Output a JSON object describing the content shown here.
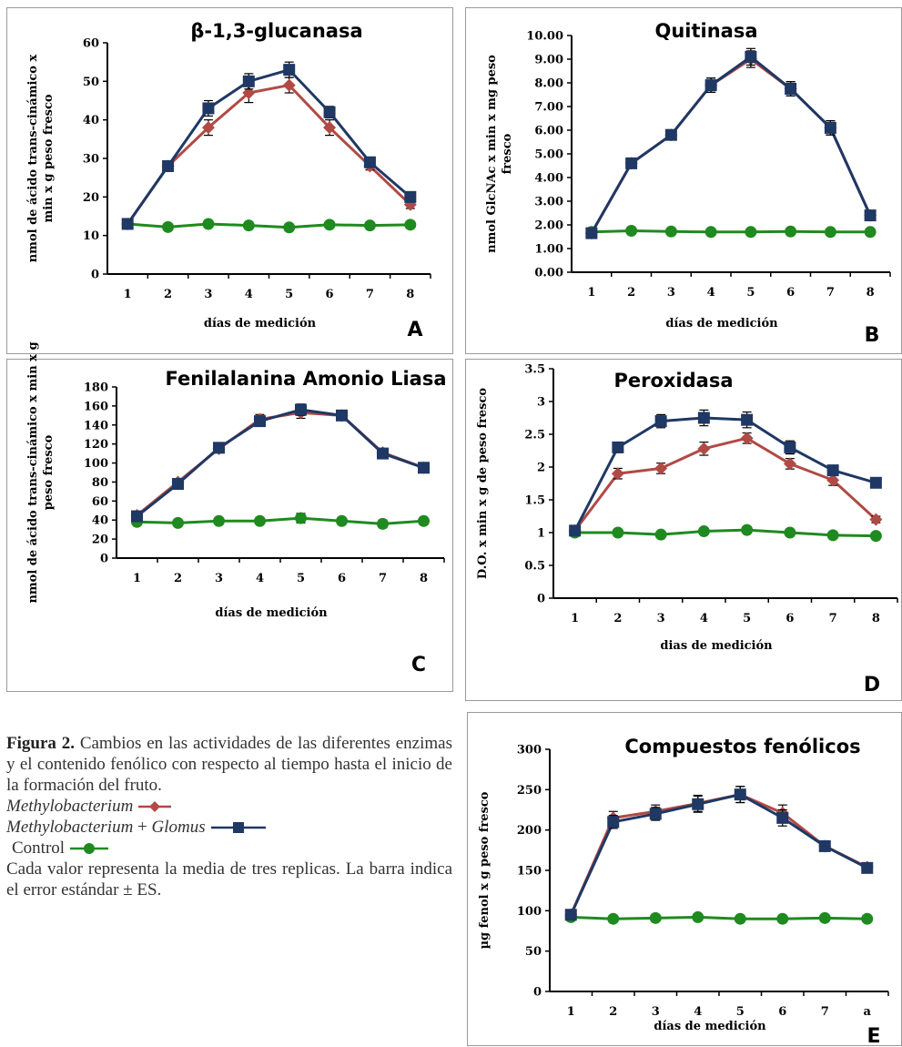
{
  "legend": {
    "methylo": "Methylobacterium",
    "methylo_glomus_1": "Methylobacterium",
    "methylo_glomus_plus": " + ",
    "methylo_glomus_2": "Glomus",
    "control": "Control"
  },
  "caption": {
    "fig_label": "Figura 2.",
    "fig_text": "  Cambios en las actividades de las diferentes enzimas y el contenido fenólico con respecto al tiempo hasta el inicio de la formación del fruto.",
    "note": "Cada valor representa la media de tres replicas. La barra indica el error estándar ± ES."
  },
  "colors": {
    "methylo": "#b04a45",
    "methylo_glomus": "#1f3864",
    "control": "#1f8a1f"
  },
  "chart_data": [
    {
      "panel": "A",
      "type": "line",
      "title": "β-1,3-glucanasa",
      "ylabel": "nmol de ácido trans-cinámico x min x g peso fresco",
      "ylabel_lines": [
        "nmol de ácido trans-cinámico x",
        "min x g peso fresco"
      ],
      "xlabel": "días de medición",
      "categories": [
        "1",
        "2",
        "3",
        "4",
        "5",
        "6",
        "7",
        "8"
      ],
      "ylim": [
        0,
        60
      ],
      "yticks": [
        "0",
        "10",
        "20",
        "30",
        "40",
        "50",
        "60"
      ],
      "series": [
        {
          "name": "Methylobacterium",
          "values": [
            13,
            28,
            38,
            47,
            49,
            38,
            28,
            18
          ],
          "err": [
            0.8,
            1.0,
            2.0,
            2.5,
            2.0,
            2.0,
            1.0,
            1.0
          ]
        },
        {
          "name": "Methylobacterium + Glomus",
          "values": [
            13,
            28,
            43,
            50,
            53,
            42,
            29,
            20
          ],
          "err": [
            0.8,
            1.0,
            2.0,
            2.0,
            2.0,
            1.5,
            1.0,
            1.0
          ]
        },
        {
          "name": "Control",
          "values": [
            13,
            12.2,
            13,
            12.6,
            12.1,
            12.8,
            12.6,
            12.8
          ],
          "err": [
            0.5,
            0.5,
            0.5,
            0.5,
            0.5,
            0.5,
            0.5,
            0.5
          ]
        }
      ]
    },
    {
      "panel": "B",
      "type": "line",
      "title": "Quitinasa",
      "ylabel": "nmol GlcNAc x min x mg peso fresco",
      "ylabel_lines": [
        "nmol GlcNAc x min x mg peso",
        "fresco"
      ],
      "xlabel": "días de medición",
      "categories": [
        "1",
        "2",
        "3",
        "4",
        "5",
        "6",
        "7",
        "8"
      ],
      "ylim": [
        0,
        10
      ],
      "yticks": [
        "0.00",
        "1.00",
        "2.00",
        "3.00",
        "4.00",
        "5.00",
        "6.00",
        "7.00",
        "8.00",
        "9.00",
        "10.00"
      ],
      "series": [
        {
          "name": "Methylobacterium",
          "values": [
            1.65,
            4.6,
            5.8,
            7.9,
            9.0,
            7.75,
            6.1,
            2.4
          ],
          "err": [
            0.1,
            0.15,
            0.15,
            0.3,
            0.35,
            0.3,
            0.3,
            0.1
          ]
        },
        {
          "name": "Methylobacterium + Glomus",
          "values": [
            1.65,
            4.6,
            5.8,
            7.9,
            9.1,
            7.75,
            6.1,
            2.4
          ],
          "err": [
            0.1,
            0.15,
            0.15,
            0.3,
            0.35,
            0.3,
            0.3,
            0.1
          ]
        },
        {
          "name": "Control",
          "values": [
            1.7,
            1.75,
            1.72,
            1.7,
            1.7,
            1.72,
            1.7,
            1.7
          ],
          "err": [
            0.05,
            0.05,
            0.05,
            0.05,
            0.05,
            0.05,
            0.05,
            0.05
          ]
        }
      ]
    },
    {
      "panel": "C",
      "type": "line",
      "title": "Fenilalanina Amonio Liasa",
      "ylabel": "nmol de ácido trans-cinámico x min x g peso fresco",
      "ylabel_lines": [
        "nmol de ácido trans-cinámico x min x g",
        "peso fresco"
      ],
      "xlabel": "días de medición",
      "categories": [
        "1",
        "2",
        "3",
        "4",
        "5",
        "6",
        "7",
        "8"
      ],
      "ylim": [
        0,
        180
      ],
      "yticks": [
        "0",
        "20",
        "40",
        "60",
        "80",
        "100",
        "120",
        "140",
        "160",
        "180"
      ],
      "series": [
        {
          "name": "Methylobacterium",
          "values": [
            45,
            80,
            115,
            146,
            153,
            150,
            111,
            95
          ],
          "err": [
            2,
            3,
            4,
            5,
            6,
            5,
            4,
            3
          ]
        },
        {
          "name": "Methylobacterium + Glomus",
          "values": [
            44,
            78,
            116,
            144,
            156,
            150,
            110,
            95
          ],
          "err": [
            2,
            3,
            4,
            5,
            6,
            5,
            4,
            3
          ]
        },
        {
          "name": "Control",
          "values": [
            38,
            37,
            39,
            39,
            42,
            39,
            36,
            39
          ],
          "err": [
            2,
            2,
            2,
            2,
            5,
            2,
            4,
            2
          ]
        }
      ]
    },
    {
      "panel": "D",
      "type": "line",
      "title": "Peroxidasa",
      "ylabel": "D.O. x min x g de peso fresco",
      "ylabel_lines": [
        "D.O. x min x g de peso fresco"
      ],
      "xlabel": "dias de medición",
      "categories": [
        "1",
        "2",
        "3",
        "4",
        "5",
        "6",
        "7",
        "8"
      ],
      "ylim": [
        0,
        3.5
      ],
      "yticks": [
        "0",
        "0.5",
        "1",
        "1.5",
        "2",
        "2.5",
        "3",
        "3.5"
      ],
      "series": [
        {
          "name": "Methylobacterium",
          "values": [
            1.03,
            1.9,
            1.98,
            2.28,
            2.44,
            2.05,
            1.8,
            1.2
          ],
          "err": [
            0.03,
            0.08,
            0.08,
            0.1,
            0.08,
            0.08,
            0.08,
            0.05
          ]
        },
        {
          "name": "Methylobacterium + Glomus",
          "values": [
            1.03,
            2.3,
            2.7,
            2.75,
            2.72,
            2.3,
            1.95,
            1.76
          ],
          "err": [
            0.03,
            0.08,
            0.1,
            0.12,
            0.12,
            0.1,
            0.05,
            0.05
          ]
        },
        {
          "name": "Control",
          "values": [
            1.0,
            1.0,
            0.97,
            1.02,
            1.04,
            1.0,
            0.96,
            0.95
          ],
          "err": [
            0.03,
            0.03,
            0.03,
            0.03,
            0.03,
            0.03,
            0.03,
            0.03
          ]
        }
      ]
    },
    {
      "panel": "E",
      "type": "line",
      "title": "Compuestos fenólicos",
      "ylabel": "µg fenol x g peso fresco",
      "ylabel_lines": [
        "µg fenol x g peso fresco"
      ],
      "xlabel": "días de medición",
      "categories": [
        "1",
        "2",
        "3",
        "4",
        "5",
        "6",
        "7",
        "a"
      ],
      "ylim": [
        0,
        300
      ],
      "yticks": [
        "0",
        "50",
        "100",
        "150",
        "200",
        "250",
        "300"
      ],
      "series": [
        {
          "name": "Methylobacterium",
          "values": [
            95,
            215,
            223,
            233,
            244,
            221,
            180,
            154
          ],
          "err": [
            3,
            8,
            8,
            10,
            10,
            10,
            6,
            5
          ]
        },
        {
          "name": "Methylobacterium + Glomus",
          "values": [
            95,
            210,
            220,
            232,
            244,
            215,
            180,
            153
          ],
          "err": [
            3,
            8,
            8,
            10,
            10,
            10,
            6,
            5
          ]
        },
        {
          "name": "Control",
          "values": [
            92,
            90,
            91,
            92,
            90,
            90,
            91,
            90
          ],
          "err": [
            2,
            2,
            2,
            2,
            2,
            2,
            2,
            2
          ]
        }
      ]
    }
  ]
}
